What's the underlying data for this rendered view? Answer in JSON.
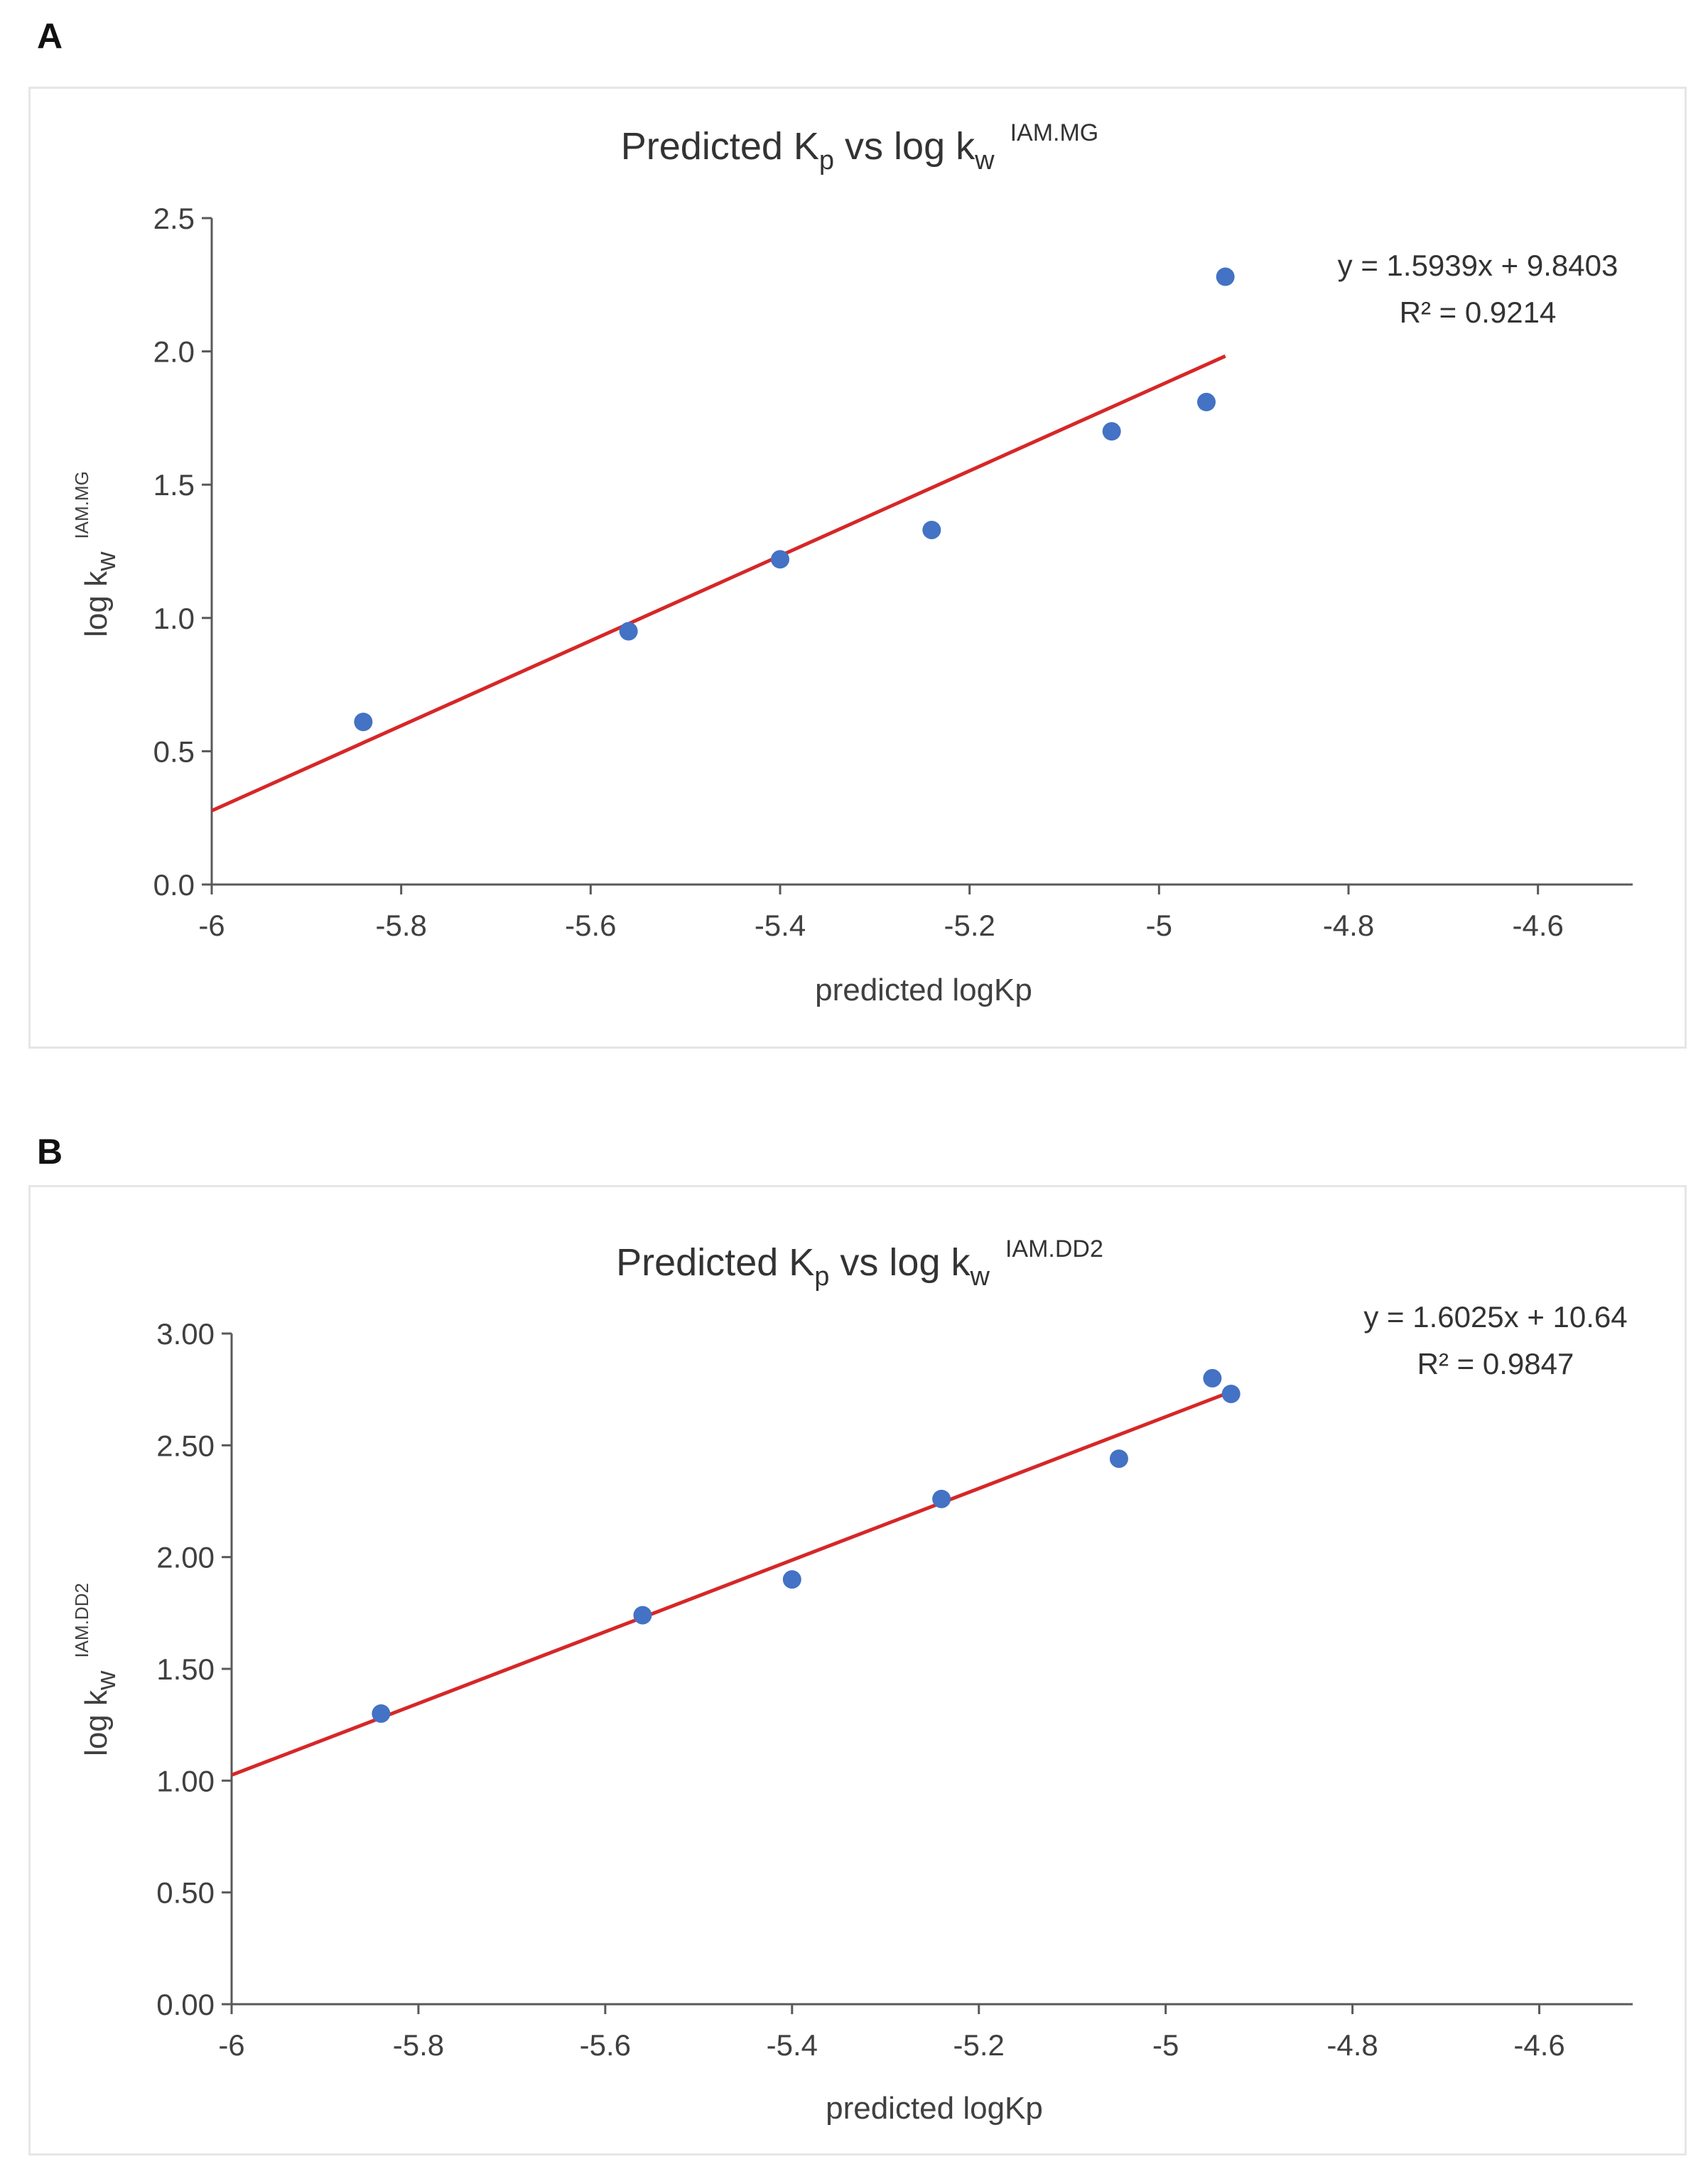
{
  "panels": [
    {
      "letter": "A",
      "chart_data": {
        "type": "scatter",
        "title": {
          "main": "Predicted K",
          "sub_p": "p",
          "mid": " vs log k",
          "sub_w": "w",
          "sup": "IAM.MG"
        },
        "xlabel": "predicted logKp",
        "ylabel": {
          "main": "log k",
          "sub": "w",
          "sup": "IAM.MG"
        },
        "xlim": [
          -6,
          -4.5
        ],
        "ylim": [
          0,
          2.5
        ],
        "xticks": [
          "-6",
          "-5.8",
          "-5.6",
          "-5.4",
          "-5.2",
          "-5",
          "-4.8",
          "-4.6"
        ],
        "xtick_values": [
          -6,
          -5.8,
          -5.6,
          -5.4,
          -5.2,
          -5,
          -4.8,
          -4.6
        ],
        "yticks": [
          "0.0",
          "0.5",
          "1.0",
          "1.5",
          "2.0",
          "2.5"
        ],
        "ytick_values": [
          0,
          0.5,
          1.0,
          1.5,
          2.0,
          2.5
        ],
        "points": [
          {
            "x": -5.84,
            "y": 0.61
          },
          {
            "x": -5.56,
            "y": 0.95
          },
          {
            "x": -5.4,
            "y": 1.22
          },
          {
            "x": -5.24,
            "y": 1.33
          },
          {
            "x": -5.05,
            "y": 1.7
          },
          {
            "x": -4.95,
            "y": 1.81
          },
          {
            "x": -4.93,
            "y": 2.28
          }
        ],
        "trendline": {
          "slope": 1.5939,
          "intercept": 9.8403,
          "x_start": -6,
          "x_end": -4.93
        },
        "equation": "y = 1.5939x + 9.8403",
        "r_squared": "R² = 0.9214",
        "grid": false,
        "point_color": "#4472C4",
        "line_color": "#D62728"
      }
    },
    {
      "letter": "B",
      "chart_data": {
        "type": "scatter",
        "title": {
          "main": "Predicted K",
          "sub_p": "p",
          "mid": " vs log k",
          "sub_w": "w",
          "sup": "IAM.DD2"
        },
        "xlabel": "predicted logKp",
        "ylabel": {
          "main": "log k",
          "sub": "w",
          "sup": "IAM.DD2"
        },
        "xlim": [
          -6,
          -4.5
        ],
        "ylim": [
          0,
          3.0
        ],
        "xticks": [
          "-6",
          "-5.8",
          "-5.6",
          "-5.4",
          "-5.2",
          "-5",
          "-4.8",
          "-4.6"
        ],
        "xtick_values": [
          -6,
          -5.8,
          -5.6,
          -5.4,
          -5.2,
          -5,
          -4.8,
          -4.6
        ],
        "yticks": [
          "0.00",
          "0.50",
          "1.00",
          "1.50",
          "2.00",
          "2.50",
          "3.00"
        ],
        "ytick_values": [
          0,
          0.5,
          1.0,
          1.5,
          2.0,
          2.5,
          3.0
        ],
        "points": [
          {
            "x": -5.84,
            "y": 1.3
          },
          {
            "x": -5.56,
            "y": 1.74
          },
          {
            "x": -5.4,
            "y": 1.9
          },
          {
            "x": -5.24,
            "y": 2.26
          },
          {
            "x": -5.05,
            "y": 2.44
          },
          {
            "x": -4.95,
            "y": 2.8
          },
          {
            "x": -4.93,
            "y": 2.73
          }
        ],
        "trendline": {
          "slope": 1.6025,
          "intercept": 10.64,
          "x_start": -6,
          "x_end": -4.93
        },
        "equation": "y = 1.6025x + 10.64",
        "r_squared": "R² = 0.9847",
        "grid": false,
        "point_color": "#4472C4",
        "line_color": "#D62728"
      }
    }
  ]
}
